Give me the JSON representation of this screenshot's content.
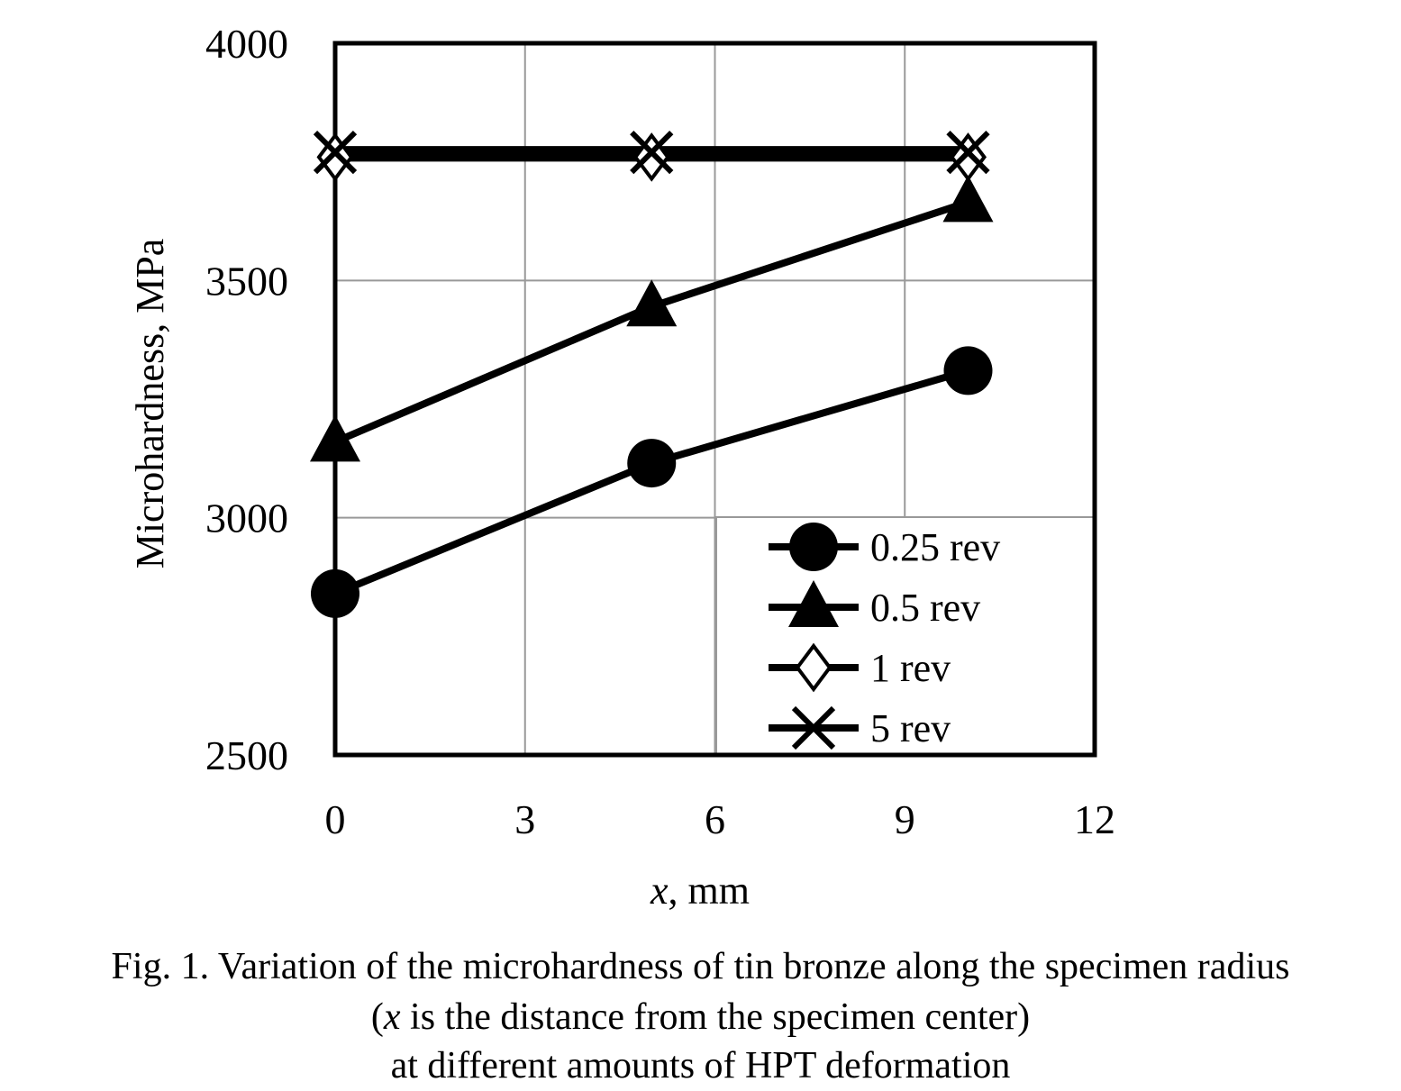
{
  "chart_data": {
    "type": "line",
    "xlabel_var": "x",
    "xlabel_rest": ", mm",
    "ylabel": "Microhardness, MPa",
    "xlim": [
      0,
      12
    ],
    "ylim": [
      2500,
      4000
    ],
    "x_ticks": [
      0,
      3,
      6,
      9,
      12
    ],
    "y_ticks": [
      2500,
      3000,
      3500,
      4000
    ],
    "grid": true,
    "legend_position": "bottom-right",
    "series": [
      {
        "name": "0.25 rev",
        "marker": "circle",
        "x": [
          0,
          5,
          10
        ],
        "y": [
          2840,
          3115,
          3310
        ]
      },
      {
        "name": "0.5 rev",
        "marker": "triangle",
        "x": [
          0,
          5,
          10
        ],
        "y": [
          3160,
          3445,
          3665
        ]
      },
      {
        "name": "1 rev",
        "marker": "diamond",
        "x": [
          0,
          5,
          10
        ],
        "y": [
          3760,
          3760,
          3760
        ]
      },
      {
        "name": "5 rev",
        "marker": "x",
        "x": [
          0,
          5,
          10
        ],
        "y": [
          3770,
          3770,
          3770
        ]
      }
    ]
  },
  "caption": {
    "line1": "Fig. 1. Variation of the microhardness of tin bronze along the specimen radius",
    "line2_open": "(",
    "line2_var": "x",
    "line2_rest": " is the distance from the specimen center)",
    "line3": "at different amounts of HPT deformation"
  }
}
